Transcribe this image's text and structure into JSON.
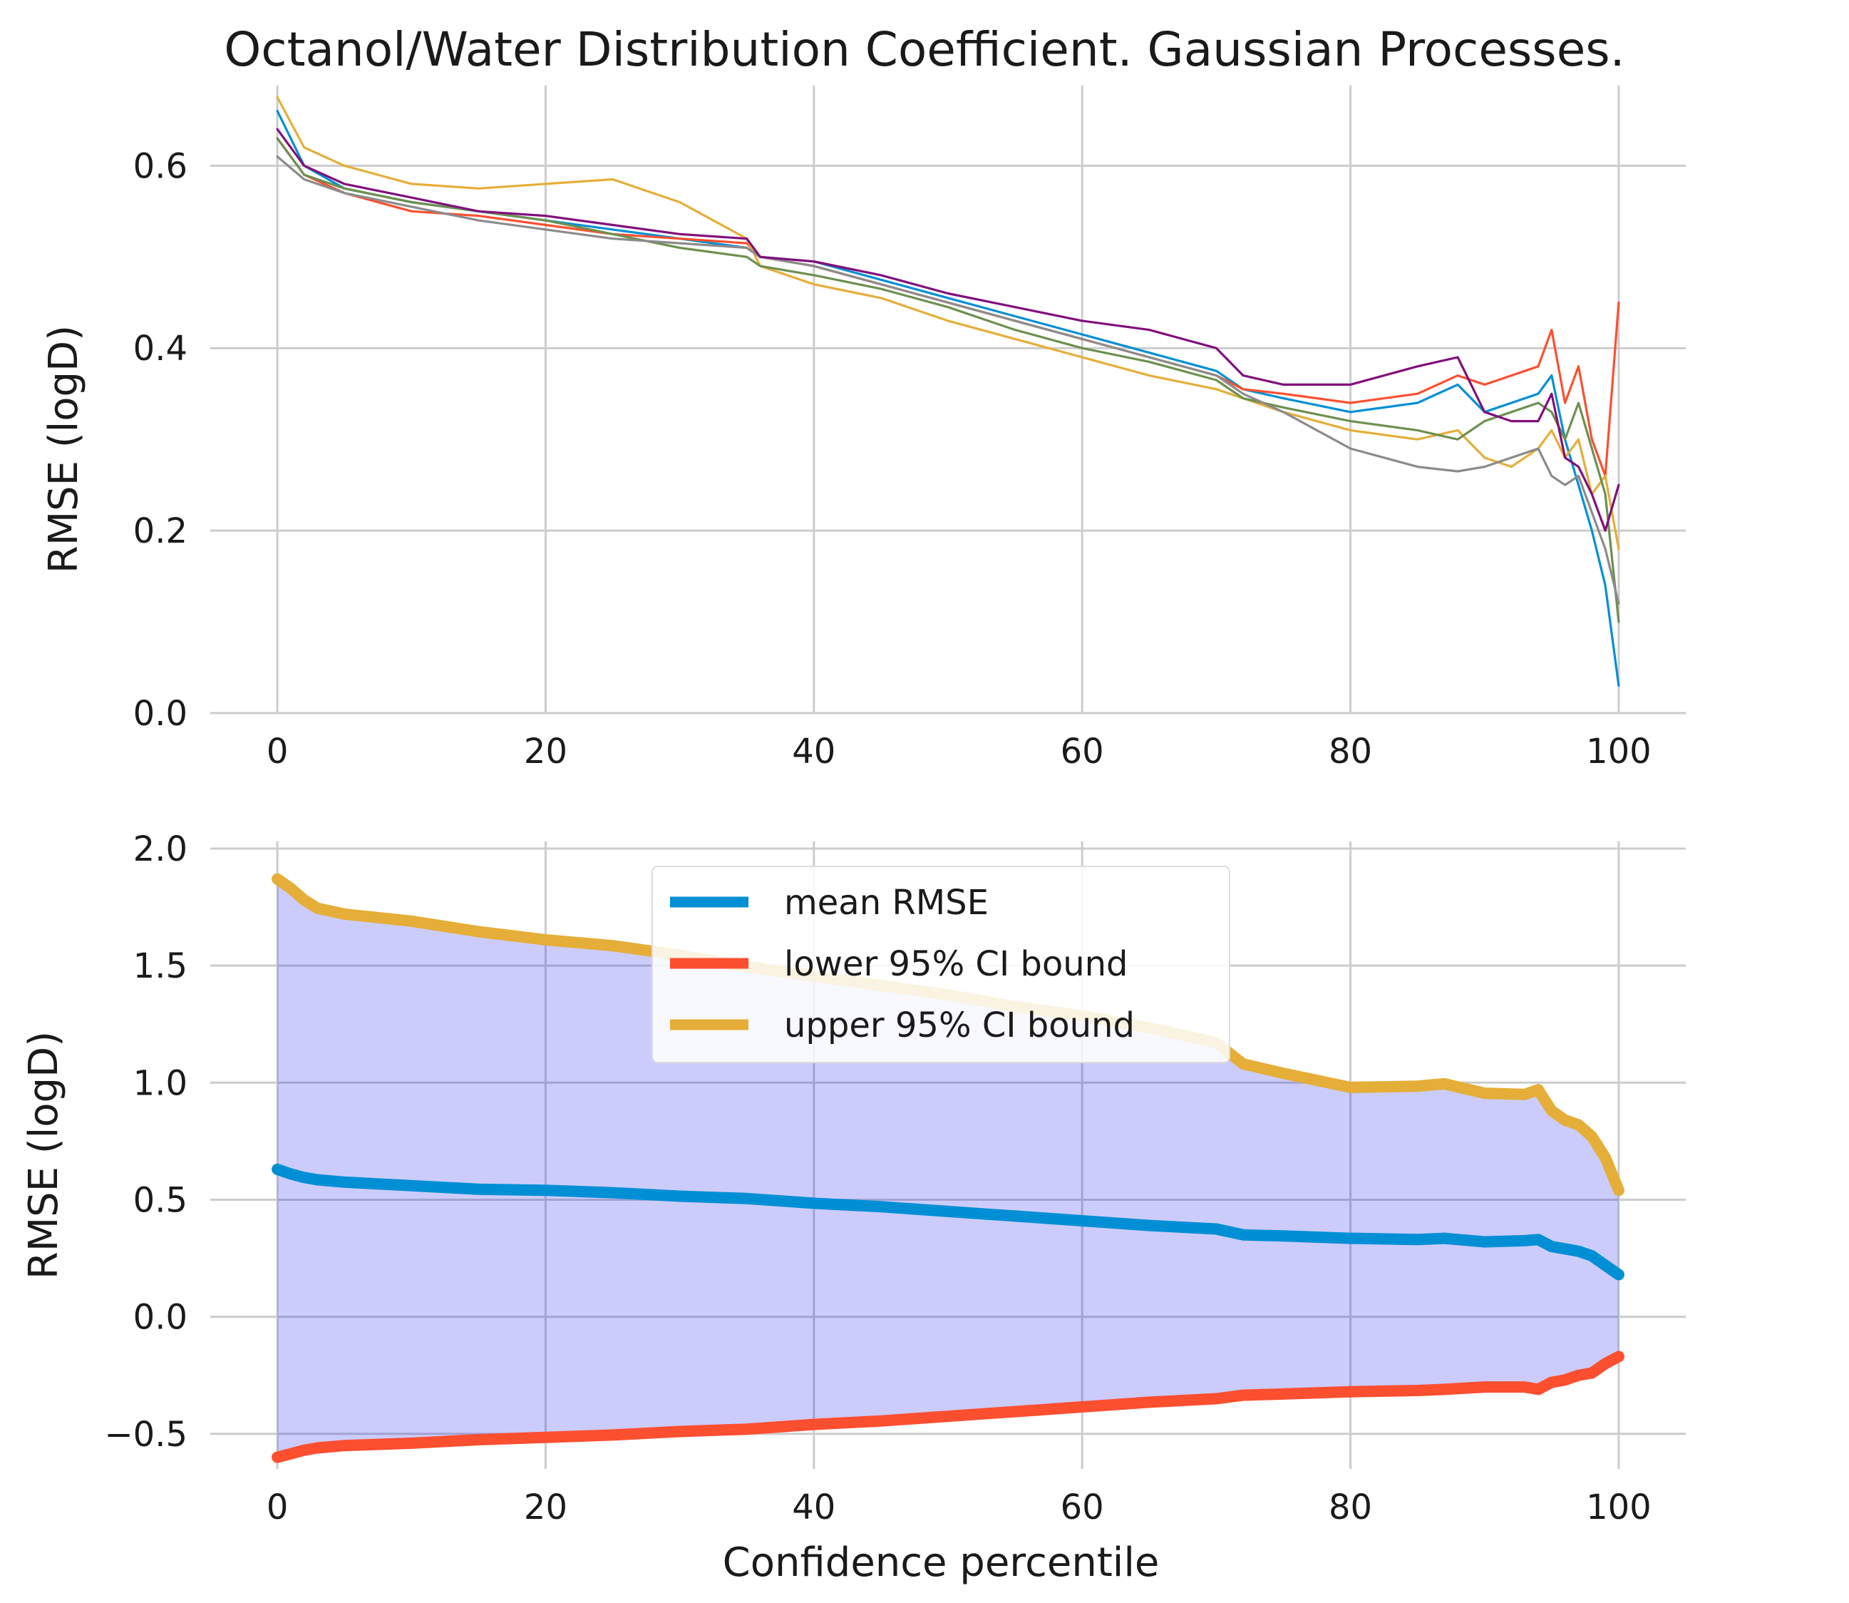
{
  "page": {
    "title": "Octanol/Water Distribution Coefficient. Gaussian Processes."
  },
  "chart_data": [
    {
      "type": "line",
      "xlabel": "",
      "ylabel": "RMSE (logD)",
      "xlim": [
        -5,
        105
      ],
      "ylim": [
        0.0,
        0.68
      ],
      "x_ticks": [
        "0",
        "20",
        "40",
        "60",
        "80",
        "100"
      ],
      "x_tick_values": [
        0,
        20,
        40,
        60,
        80,
        100
      ],
      "y_ticks": [
        "0.0",
        "0.2",
        "0.4",
        "0.6"
      ],
      "y_tick_values": [
        0.0,
        0.2,
        0.4,
        0.6
      ],
      "grid": true,
      "x": [
        0,
        2,
        5,
        10,
        15,
        20,
        25,
        30,
        35,
        36,
        40,
        45,
        50,
        55,
        60,
        65,
        70,
        72,
        75,
        80,
        85,
        88,
        90,
        92,
        94,
        95,
        96,
        97,
        98,
        99,
        100
      ],
      "series": [
        {
          "color": "#008fd5",
          "values": [
            0.66,
            0.6,
            0.575,
            0.56,
            0.55,
            0.54,
            0.53,
            0.52,
            0.51,
            0.5,
            0.495,
            0.475,
            0.455,
            0.435,
            0.415,
            0.395,
            0.375,
            0.355,
            0.345,
            0.33,
            0.34,
            0.36,
            0.33,
            0.34,
            0.35,
            0.37,
            0.3,
            0.25,
            0.2,
            0.14,
            0.03
          ]
        },
        {
          "color": "#fc4f30",
          "values": [
            0.63,
            0.59,
            0.57,
            0.55,
            0.545,
            0.535,
            0.525,
            0.52,
            0.515,
            0.5,
            0.49,
            0.47,
            0.45,
            0.43,
            0.41,
            0.39,
            0.37,
            0.355,
            0.35,
            0.34,
            0.35,
            0.37,
            0.36,
            0.37,
            0.38,
            0.42,
            0.34,
            0.38,
            0.3,
            0.26,
            0.45
          ]
        },
        {
          "color": "#e5ae38",
          "values": [
            0.675,
            0.62,
            0.6,
            0.58,
            0.575,
            0.58,
            0.585,
            0.56,
            0.52,
            0.49,
            0.47,
            0.455,
            0.43,
            0.41,
            0.39,
            0.37,
            0.355,
            0.345,
            0.33,
            0.31,
            0.3,
            0.31,
            0.28,
            0.27,
            0.29,
            0.31,
            0.28,
            0.3,
            0.24,
            0.26,
            0.18
          ]
        },
        {
          "color": "#6d904f",
          "values": [
            0.63,
            0.59,
            0.575,
            0.56,
            0.55,
            0.54,
            0.525,
            0.51,
            0.5,
            0.49,
            0.48,
            0.465,
            0.445,
            0.42,
            0.4,
            0.385,
            0.365,
            0.345,
            0.335,
            0.32,
            0.31,
            0.3,
            0.32,
            0.33,
            0.34,
            0.33,
            0.3,
            0.34,
            0.29,
            0.24,
            0.1
          ]
        },
        {
          "color": "#8b8b8b",
          "values": [
            0.61,
            0.585,
            0.57,
            0.555,
            0.54,
            0.53,
            0.52,
            0.515,
            0.51,
            0.5,
            0.49,
            0.47,
            0.45,
            0.43,
            0.41,
            0.39,
            0.37,
            0.35,
            0.33,
            0.29,
            0.27,
            0.265,
            0.27,
            0.28,
            0.29,
            0.26,
            0.25,
            0.26,
            0.22,
            0.18,
            0.12
          ]
        },
        {
          "color": "#810f7c",
          "values": [
            0.64,
            0.6,
            0.58,
            0.565,
            0.55,
            0.545,
            0.535,
            0.525,
            0.52,
            0.5,
            0.495,
            0.48,
            0.46,
            0.445,
            0.43,
            0.42,
            0.4,
            0.37,
            0.36,
            0.36,
            0.38,
            0.39,
            0.33,
            0.32,
            0.32,
            0.35,
            0.28,
            0.27,
            0.24,
            0.2,
            0.25
          ]
        }
      ]
    },
    {
      "type": "area",
      "xlabel": "Confidence percentile",
      "ylabel": "RMSE (logD)",
      "xlim": [
        -5,
        105
      ],
      "ylim": [
        -0.65,
        2.0
      ],
      "x_ticks": [
        "0",
        "20",
        "40",
        "60",
        "80",
        "100"
      ],
      "x_tick_values": [
        0,
        20,
        40,
        60,
        80,
        100
      ],
      "y_ticks": [
        "−0.5",
        "0.0",
        "0.5",
        "1.0",
        "1.5",
        "2.0"
      ],
      "y_tick_values": [
        -0.5,
        0.0,
        0.5,
        1.0,
        1.5,
        2.0
      ],
      "grid": true,
      "legend_position": "top-center",
      "fill_color": "#0000ee",
      "x": [
        0,
        1,
        2,
        3,
        5,
        10,
        15,
        20,
        25,
        30,
        35,
        40,
        45,
        50,
        55,
        60,
        65,
        70,
        72,
        75,
        80,
        85,
        87,
        90,
        93,
        94,
        95,
        96,
        97,
        98,
        99,
        100
      ],
      "series": [
        {
          "name": "mean RMSE",
          "color": "#008fd5",
          "values": [
            0.63,
            0.61,
            0.595,
            0.585,
            0.575,
            0.56,
            0.545,
            0.54,
            0.53,
            0.515,
            0.505,
            0.485,
            0.47,
            0.45,
            0.43,
            0.41,
            0.39,
            0.375,
            0.35,
            0.345,
            0.335,
            0.33,
            0.335,
            0.32,
            0.325,
            0.33,
            0.3,
            0.29,
            0.28,
            0.26,
            0.22,
            0.18
          ]
        },
        {
          "name": "lower 95% CI bound",
          "color": "#fc4f30",
          "values": [
            -0.6,
            -0.585,
            -0.57,
            -0.56,
            -0.55,
            -0.54,
            -0.525,
            -0.515,
            -0.505,
            -0.49,
            -0.48,
            -0.46,
            -0.445,
            -0.425,
            -0.405,
            -0.385,
            -0.365,
            -0.35,
            -0.335,
            -0.33,
            -0.32,
            -0.315,
            -0.31,
            -0.3,
            -0.3,
            -0.31,
            -0.28,
            -0.27,
            -0.25,
            -0.24,
            -0.2,
            -0.17
          ]
        },
        {
          "name": "upper 95% CI bound",
          "color": "#e5ae38",
          "values": [
            1.87,
            1.83,
            1.78,
            1.745,
            1.72,
            1.69,
            1.645,
            1.61,
            1.585,
            1.545,
            1.495,
            1.455,
            1.415,
            1.375,
            1.325,
            1.285,
            1.235,
            1.17,
            1.08,
            1.04,
            0.98,
            0.985,
            0.995,
            0.955,
            0.95,
            0.97,
            0.88,
            0.84,
            0.82,
            0.77,
            0.68,
            0.54
          ]
        }
      ]
    }
  ]
}
